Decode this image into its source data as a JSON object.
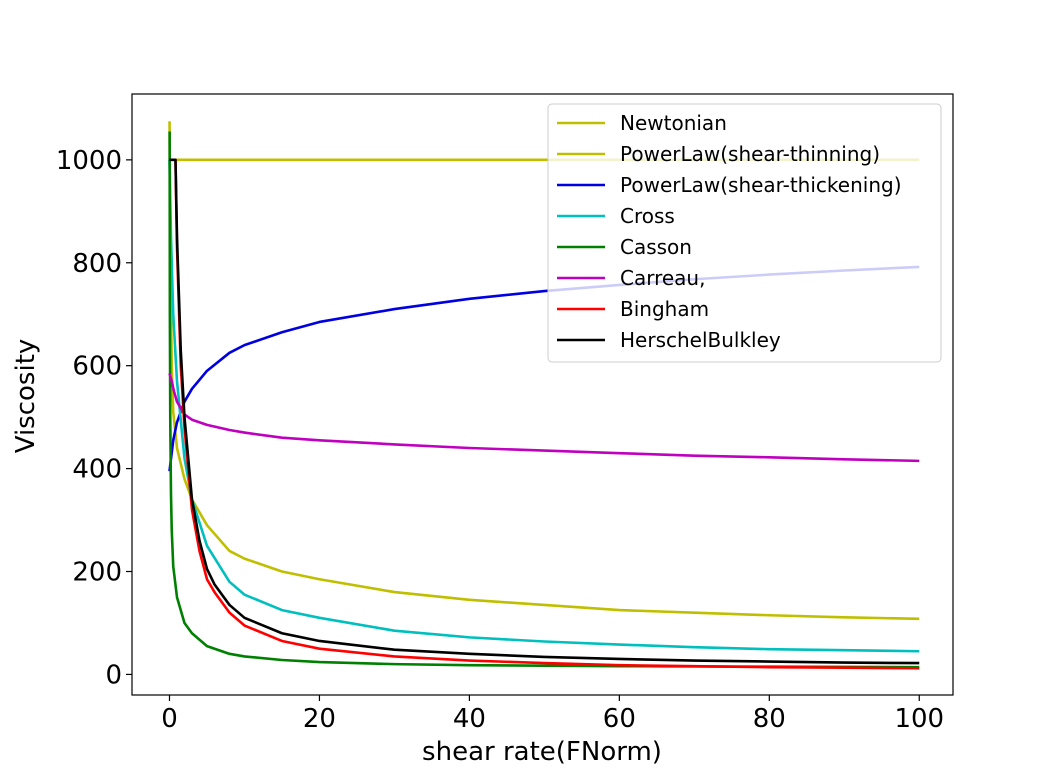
{
  "chart_data": {
    "type": "line",
    "title": "",
    "xlabel": "shear rate(FNorm)",
    "ylabel": "Viscosity",
    "xlim": [
      -5,
      104.5
    ],
    "ylim": [
      -40,
      1128
    ],
    "xticks": [
      0,
      20,
      40,
      60,
      80,
      100
    ],
    "yticks": [
      0,
      200,
      400,
      600,
      800,
      1000
    ],
    "grid": false,
    "legend_position": "top-right",
    "series": [
      {
        "name": "Newtonian",
        "color": "#bfbf00",
        "x": [
          0,
          100
        ],
        "y": [
          1000,
          1000
        ]
      },
      {
        "name": "PowerLaw(shear-thinning)",
        "color": "#bfbf00",
        "x": [
          0.01,
          0.05,
          0.1,
          0.3,
          0.5,
          1,
          2,
          3,
          5,
          8,
          10,
          15,
          20,
          30,
          40,
          50,
          60,
          70,
          80,
          90,
          100
        ],
        "y": [
          1075,
          960,
          830,
          600,
          510,
          440,
          380,
          340,
          290,
          240,
          225,
          200,
          185,
          160,
          145,
          135,
          125,
          120,
          115,
          111,
          108
        ]
      },
      {
        "name": "PowerLaw(shear-thickening)",
        "color": "#0000e0",
        "x": [
          0,
          0.5,
          1,
          2,
          3,
          5,
          8,
          10,
          15,
          20,
          30,
          40,
          50,
          60,
          70,
          80,
          90,
          100
        ],
        "y": [
          395,
          455,
          490,
          530,
          555,
          590,
          625,
          640,
          665,
          685,
          710,
          730,
          745,
          757,
          768,
          777,
          785,
          792
        ]
      },
      {
        "name": "Cross",
        "color": "#00bfbf",
        "x": [
          0,
          0.2,
          0.5,
          1,
          2,
          3,
          5,
          8,
          10,
          15,
          20,
          30,
          40,
          50,
          60,
          70,
          80,
          90,
          100
        ],
        "y": [
          1000,
          850,
          700,
          570,
          420,
          340,
          250,
          180,
          155,
          125,
          110,
          85,
          72,
          64,
          58,
          53,
          49,
          47,
          45
        ]
      },
      {
        "name": "Casson",
        "color": "#008000",
        "x": [
          0.02,
          0.05,
          0.1,
          0.2,
          0.3,
          0.5,
          1,
          2,
          3,
          5,
          8,
          10,
          15,
          20,
          30,
          40,
          60,
          80,
          100
        ],
        "y": [
          1055,
          700,
          500,
          350,
          280,
          210,
          150,
          100,
          80,
          55,
          40,
          35,
          28,
          24,
          20,
          18,
          16,
          15,
          14
        ]
      },
      {
        "name": "Carreau,",
        "color": "#bf00bf",
        "x": [
          0,
          0.3,
          0.6,
          1,
          2,
          3,
          5,
          8,
          10,
          15,
          20,
          30,
          40,
          50,
          60,
          70,
          80,
          90,
          100
        ],
        "y": [
          585,
          570,
          550,
          530,
          505,
          495,
          485,
          475,
          470,
          460,
          455,
          447,
          440,
          435,
          430,
          425,
          422,
          418,
          415
        ]
      },
      {
        "name": "Bingham",
        "color": "#ff0000",
        "x": [
          0.8,
          1,
          1.5,
          2,
          3,
          4,
          5,
          6,
          8,
          10,
          15,
          20,
          30,
          40,
          50,
          60,
          70,
          80,
          90,
          100
        ],
        "y": [
          1000,
          830,
          600,
          480,
          320,
          240,
          185,
          160,
          120,
          95,
          65,
          50,
          35,
          27,
          22,
          18,
          16,
          14,
          13,
          12
        ]
      },
      {
        "name": "HerschelBulkley",
        "color": "#000000",
        "x": [
          0,
          0.8,
          0.8,
          1,
          1.5,
          2,
          3,
          4,
          5,
          6,
          8,
          10,
          15,
          20,
          30,
          40,
          50,
          60,
          70,
          80,
          90,
          100
        ],
        "y": [
          1000,
          1000,
          1000,
          850,
          630,
          500,
          340,
          260,
          205,
          175,
          135,
          110,
          80,
          65,
          48,
          40,
          34,
          30,
          27,
          25,
          23,
          22
        ]
      }
    ]
  }
}
